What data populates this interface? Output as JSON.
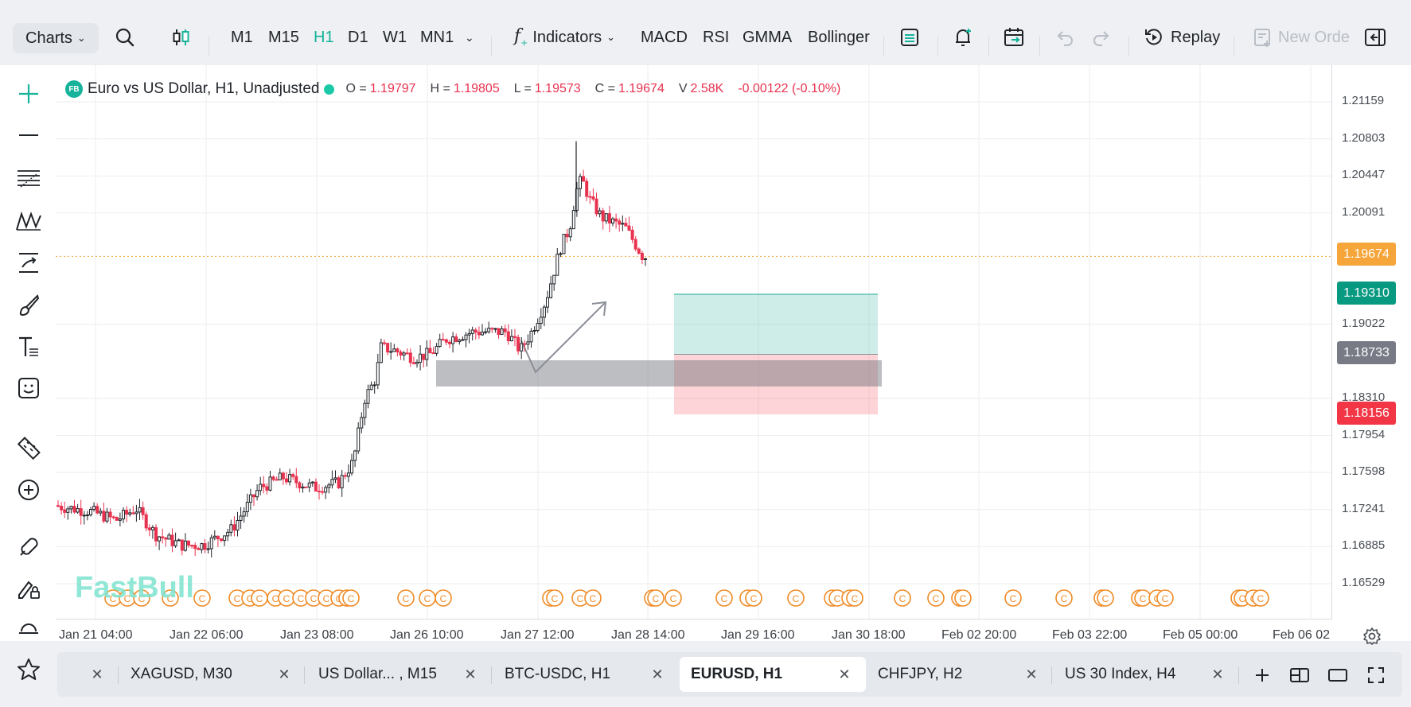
{
  "toolbar": {
    "charts_label": "Charts",
    "timeframes": [
      "M1",
      "M15",
      "H1",
      "D1",
      "W1",
      "MN1"
    ],
    "active_timeframe": "H1",
    "indicators_label": "Indicators",
    "quick_indicators": [
      "MACD",
      "RSI",
      "GMMA",
      "Bollinger"
    ],
    "replay_label": "Replay",
    "new_order_label": "New Orde"
  },
  "legend": {
    "badge": "FB",
    "symbol": "Euro vs US Dollar, H1, Unadjusted",
    "o_label": "O =",
    "o_value": "1.19797",
    "h_label": "H =",
    "h_value": "1.19805",
    "l_label": "L =",
    "l_value": "1.19573",
    "c_label": "C =",
    "c_value": "1.19674",
    "v_label": "V",
    "v_value": "2.58K",
    "change": "-0.00122 (-0.10%)"
  },
  "price_axis": {
    "labels": [
      "1.21159",
      "1.20803",
      "1.20447",
      "1.20091",
      "1.19022",
      "1.18310",
      "1.17954",
      "1.17598",
      "1.17241",
      "1.16885",
      "1.16529"
    ],
    "tags": {
      "current": {
        "value": "1.19674",
        "color": "#f5a53a"
      },
      "take_profit": {
        "value": "1.19310",
        "color": "#089981"
      },
      "entry": {
        "value": "1.18733",
        "color": "#787b86"
      },
      "stop_loss": {
        "value": "1.18156",
        "color": "#f23645"
      }
    }
  },
  "time_axis": {
    "labels": [
      "Jan 21 04:00",
      "Jan 22 06:00",
      "Jan 23 08:00",
      "Jan 26 10:00",
      "Jan 27 12:00",
      "Jan 28 14:00",
      "Jan 29 16:00",
      "Jan 30 18:00",
      "Feb 02 20:00",
      "Feb 03 22:00",
      "Feb 05 00:00",
      "Feb 06 02"
    ]
  },
  "watermark": "FastBull",
  "tabs": [
    {
      "label": "XAGUSD, M30"
    },
    {
      "label": "US Dollar... , M15"
    },
    {
      "label": "BTC-USDC, H1"
    },
    {
      "label": "EURUSD, H1",
      "active": true
    },
    {
      "label": "CHFJPY, H2"
    },
    {
      "label": "US 30 Index, H4"
    }
  ],
  "colors": {
    "accent": "#16b39a",
    "up_candle": "#1f2328",
    "down_candle": "#e8324f",
    "event_marker": "#f08a24"
  },
  "icons": [
    "search-icon",
    "candlestick-icon",
    "chevron-down-icon",
    "function-icon",
    "layers-icon",
    "alert-icon",
    "calendar-icon",
    "undo-icon",
    "redo-icon",
    "replay-icon",
    "order-icon",
    "panel-toggle-icon",
    "crosshair-icon",
    "trendline-icon",
    "fib-icon",
    "pattern-icon",
    "projection-icon",
    "brush-icon",
    "text-icon",
    "emoji-icon",
    "ruler-icon",
    "zoom-icon",
    "magnet-icon",
    "lock-drawing-icon",
    "hide-icon",
    "star-icon",
    "settings-icon",
    "add-tab-icon",
    "layout-icon",
    "window-icon",
    "fullscreen-icon"
  ]
}
